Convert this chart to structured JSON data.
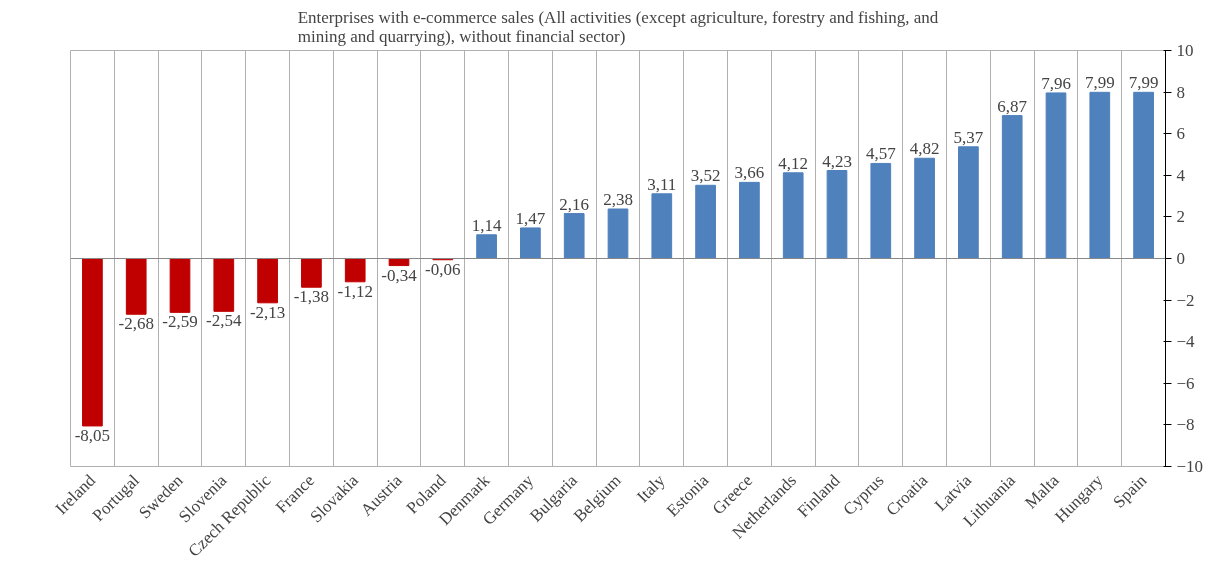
{
  "chart_data": {
    "type": "bar",
    "title": "Enterprises with e-commerce sales (All activities (except agriculture, forestry and fishing, and mining and quarrying), without financial sector)",
    "categories": [
      "Ireland",
      "Portugal",
      "Sweden",
      "Slovenia",
      "Czech Republic",
      "France",
      "Slovakia",
      "Austria",
      "Poland",
      "Denmark",
      "Germany",
      "Bulgaria",
      "Belgium",
      "Italy",
      "Estonia",
      "Greece",
      "Netherlands",
      "Finland",
      "Cyprus",
      "Croatia",
      "Latvia",
      "Lithuania",
      "Malta",
      "Hungary",
      "Spain"
    ],
    "values": [
      -8.05,
      -2.68,
      -2.59,
      -2.54,
      -2.13,
      -1.38,
      -1.12,
      -0.34,
      -0.06,
      1.14,
      1.47,
      2.16,
      2.38,
      3.11,
      3.52,
      3.66,
      4.12,
      4.23,
      4.57,
      4.82,
      5.37,
      6.87,
      7.96,
      7.99,
      7.99
    ],
    "value_labels": [
      "-8,05",
      "-2,68",
      "-2,59",
      "-2,54",
      "-2,13",
      "-1,38",
      "-1,12",
      "-0,34",
      "-0,06",
      "1,14",
      "1,47",
      "2,16",
      "2,38",
      "3,11",
      "3,52",
      "3,66",
      "4,12",
      "4,23",
      "4,57",
      "4,82",
      "5,37",
      "6,87",
      "7,96",
      "7,99",
      "7,99"
    ],
    "colors": [
      "#c00000",
      "#c00000",
      "#c00000",
      "#c00000",
      "#c00000",
      "#c00000",
      "#c00000",
      "#c00000",
      "#c00000",
      "#4f81bd",
      "#4f81bd",
      "#4f81bd",
      "#4f81bd",
      "#4f81bd",
      "#4f81bd",
      "#4f81bd",
      "#4f81bd",
      "#4f81bd",
      "#4f81bd",
      "#4f81bd",
      "#4f81bd",
      "#4f81bd",
      "#4f81bd",
      "#4f81bd",
      "#4f81bd"
    ],
    "ylim": [
      -10,
      10
    ],
    "yticks": [
      -10,
      -8,
      -6,
      -4,
      -2,
      0,
      2,
      4,
      6,
      8,
      10
    ],
    "grid": "x"
  }
}
